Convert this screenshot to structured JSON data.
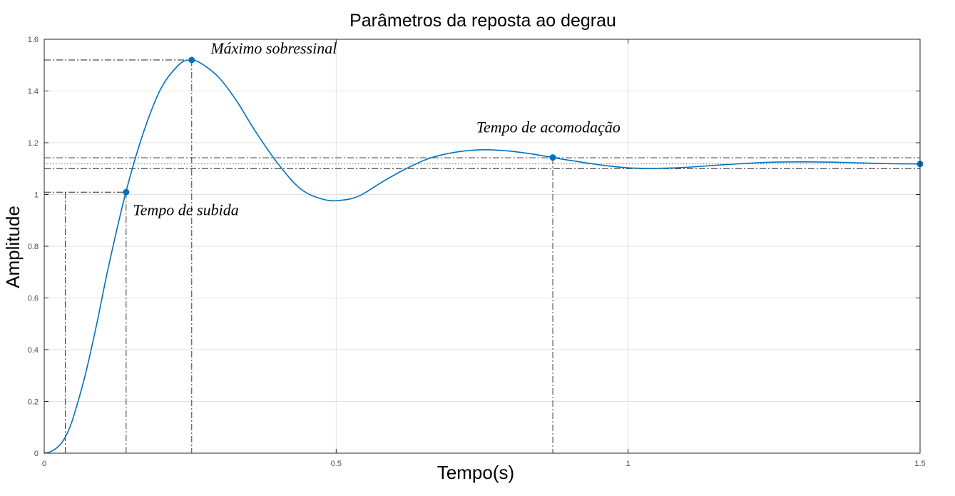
{
  "chart_data": {
    "type": "line",
    "title": "Parâmetros da reposta ao degrau",
    "xlabel": "Tempo(s)",
    "ylabel": "Amplitude",
    "xlim": [
      0,
      1.5
    ],
    "ylim": [
      0,
      1.6
    ],
    "xticks": [
      0,
      0.5,
      1,
      1.5
    ],
    "xtick_labels": [
      "0",
      "0.5",
      "1",
      "1.5"
    ],
    "yticks": [
      0,
      0.2,
      0.4,
      0.6,
      0.8,
      1,
      1.2,
      1.4,
      1.6
    ],
    "ytick_labels": [
      "0",
      "0.2",
      "0.4",
      "0.6",
      "0.8",
      "1",
      "1.2",
      "1.4",
      "1.6"
    ],
    "grid": true,
    "series": [
      {
        "color": "#0072BD",
        "x": [
          0,
          0.01,
          0.02,
          0.03,
          0.04,
          0.05,
          0.07,
          0.09,
          0.11,
          0.14,
          0.17,
          0.2,
          0.23,
          0.25,
          0.27,
          0.3,
          0.33,
          0.36,
          0.4,
          0.44,
          0.48,
          0.51,
          0.54,
          0.58,
          0.62,
          0.66,
          0.7,
          0.74,
          0.77,
          0.8,
          0.84,
          0.87,
          0.9,
          0.95,
          1.0,
          1.05,
          1.1,
          1.15,
          1.2,
          1.25,
          1.3,
          1.35,
          1.4,
          1.45,
          1.5
        ],
        "y": [
          0,
          0.005,
          0.018,
          0.04,
          0.08,
          0.14,
          0.3,
          0.5,
          0.72,
          1.01,
          1.24,
          1.41,
          1.5,
          1.52,
          1.505,
          1.45,
          1.36,
          1.25,
          1.12,
          1.02,
          0.98,
          0.978,
          0.995,
          1.05,
          1.1,
          1.14,
          1.162,
          1.172,
          1.172,
          1.167,
          1.155,
          1.143,
          1.132,
          1.115,
          1.103,
          1.101,
          1.105,
          1.113,
          1.12,
          1.125,
          1.126,
          1.125,
          1.122,
          1.119,
          1.118
        ]
      }
    ],
    "markers": [
      {
        "x": 0.1403,
        "y": 1.009
      },
      {
        "x": 0.2526,
        "y": 1.52
      },
      {
        "x": 0.871,
        "y": 1.143
      },
      {
        "x": 1.5,
        "y": 1.118
      }
    ],
    "reference_lines": {
      "final_value": 1.118,
      "settling_band": [
        1.1,
        1.142
      ],
      "rise_level": 1.009,
      "peak_level": 1.52,
      "rise_start_time": 0.036,
      "rise_time": 0.1403,
      "peak_time": 0.2526,
      "settling_time": 0.871
    },
    "annotations": [
      {
        "text": "Máximo sobressinal",
        "x": 0.285,
        "y": 1.545
      },
      {
        "text": "Tempo de subida",
        "x": 0.152,
        "y": 0.92
      },
      {
        "text": "Tempo de acomodação",
        "x": 0.74,
        "y": 1.24
      }
    ]
  }
}
